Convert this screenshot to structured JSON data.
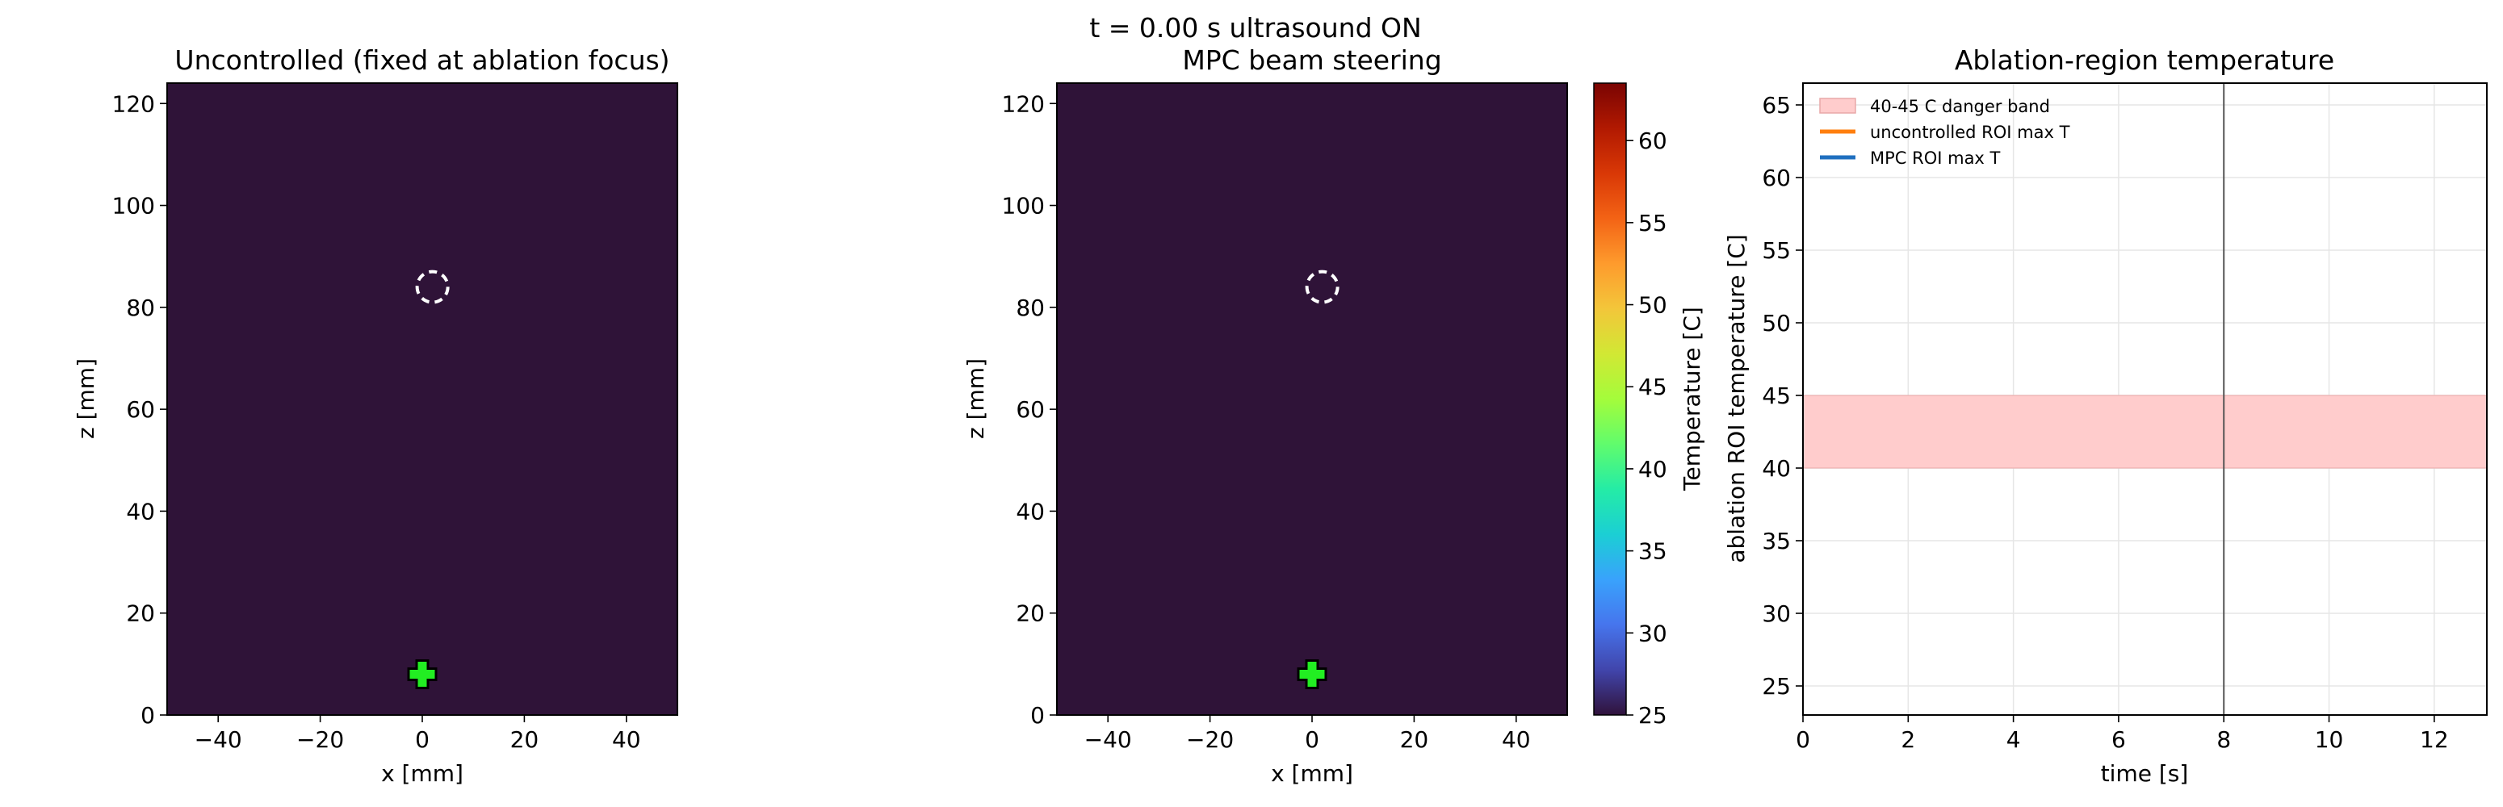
{
  "suptitle": "t =  0.00 s   ultrasound ON",
  "colors": {
    "field": "#2f1338",
    "cross": "#22ee22",
    "cross_outline": "#000000",
    "ring": "#ffffff",
    "band": "#ffcccc",
    "uncontrolled": "#ff7f0e",
    "mpc": "#1f6fbf"
  },
  "chart_data": [
    {
      "type": "heatmap",
      "title": "Uncontrolled (fixed at ablation focus)",
      "xlabel": "x [mm]",
      "ylabel": "z [mm]",
      "xlim": [
        -50,
        50
      ],
      "ylim": [
        0,
        124
      ],
      "xticks": [
        -40,
        -20,
        0,
        20,
        40
      ],
      "yticks": [
        0,
        20,
        40,
        60,
        80,
        100,
        120
      ],
      "temperature_uniform": 25,
      "target_ring": {
        "x": 2,
        "z": 84,
        "r": 3
      },
      "transducer_marker": {
        "x": 0,
        "z": 8
      }
    },
    {
      "type": "heatmap",
      "title": "MPC beam steering",
      "xlabel": "x [mm]",
      "ylabel": "z [mm]",
      "xlim": [
        -50,
        50
      ],
      "ylim": [
        0,
        124
      ],
      "xticks": [
        -40,
        -20,
        0,
        20,
        40
      ],
      "yticks": [
        0,
        20,
        40,
        60,
        80,
        100,
        120
      ],
      "temperature_uniform": 25,
      "target_ring": {
        "x": 2,
        "z": 84,
        "r": 3
      },
      "transducer_marker": {
        "x": 0,
        "z": 8
      },
      "colorbar": {
        "label": "Temperature [C]",
        "range": [
          25,
          63.5
        ],
        "ticks": [
          25,
          30,
          35,
          40,
          45,
          50,
          55,
          60
        ],
        "colormap": "turbo"
      }
    },
    {
      "type": "line",
      "title": "Ablation-region temperature",
      "xlabel": "time [s]",
      "ylabel": "ablation ROI temperature [C]",
      "xlim": [
        0,
        13
      ],
      "ylim": [
        23,
        66.5
      ],
      "xticks": [
        0,
        2,
        4,
        6,
        8,
        10,
        12
      ],
      "yticks": [
        25,
        30,
        35,
        40,
        45,
        50,
        55,
        60,
        65
      ],
      "grid": true,
      "legend_position": "top-left",
      "band": {
        "name": "40-45 C danger band",
        "y0": 40,
        "y1": 45
      },
      "vline_x": 8,
      "series": [
        {
          "name": "uncontrolled ROI max T",
          "x": [],
          "y": []
        },
        {
          "name": "MPC ROI max T",
          "x": [],
          "y": []
        }
      ]
    }
  ]
}
